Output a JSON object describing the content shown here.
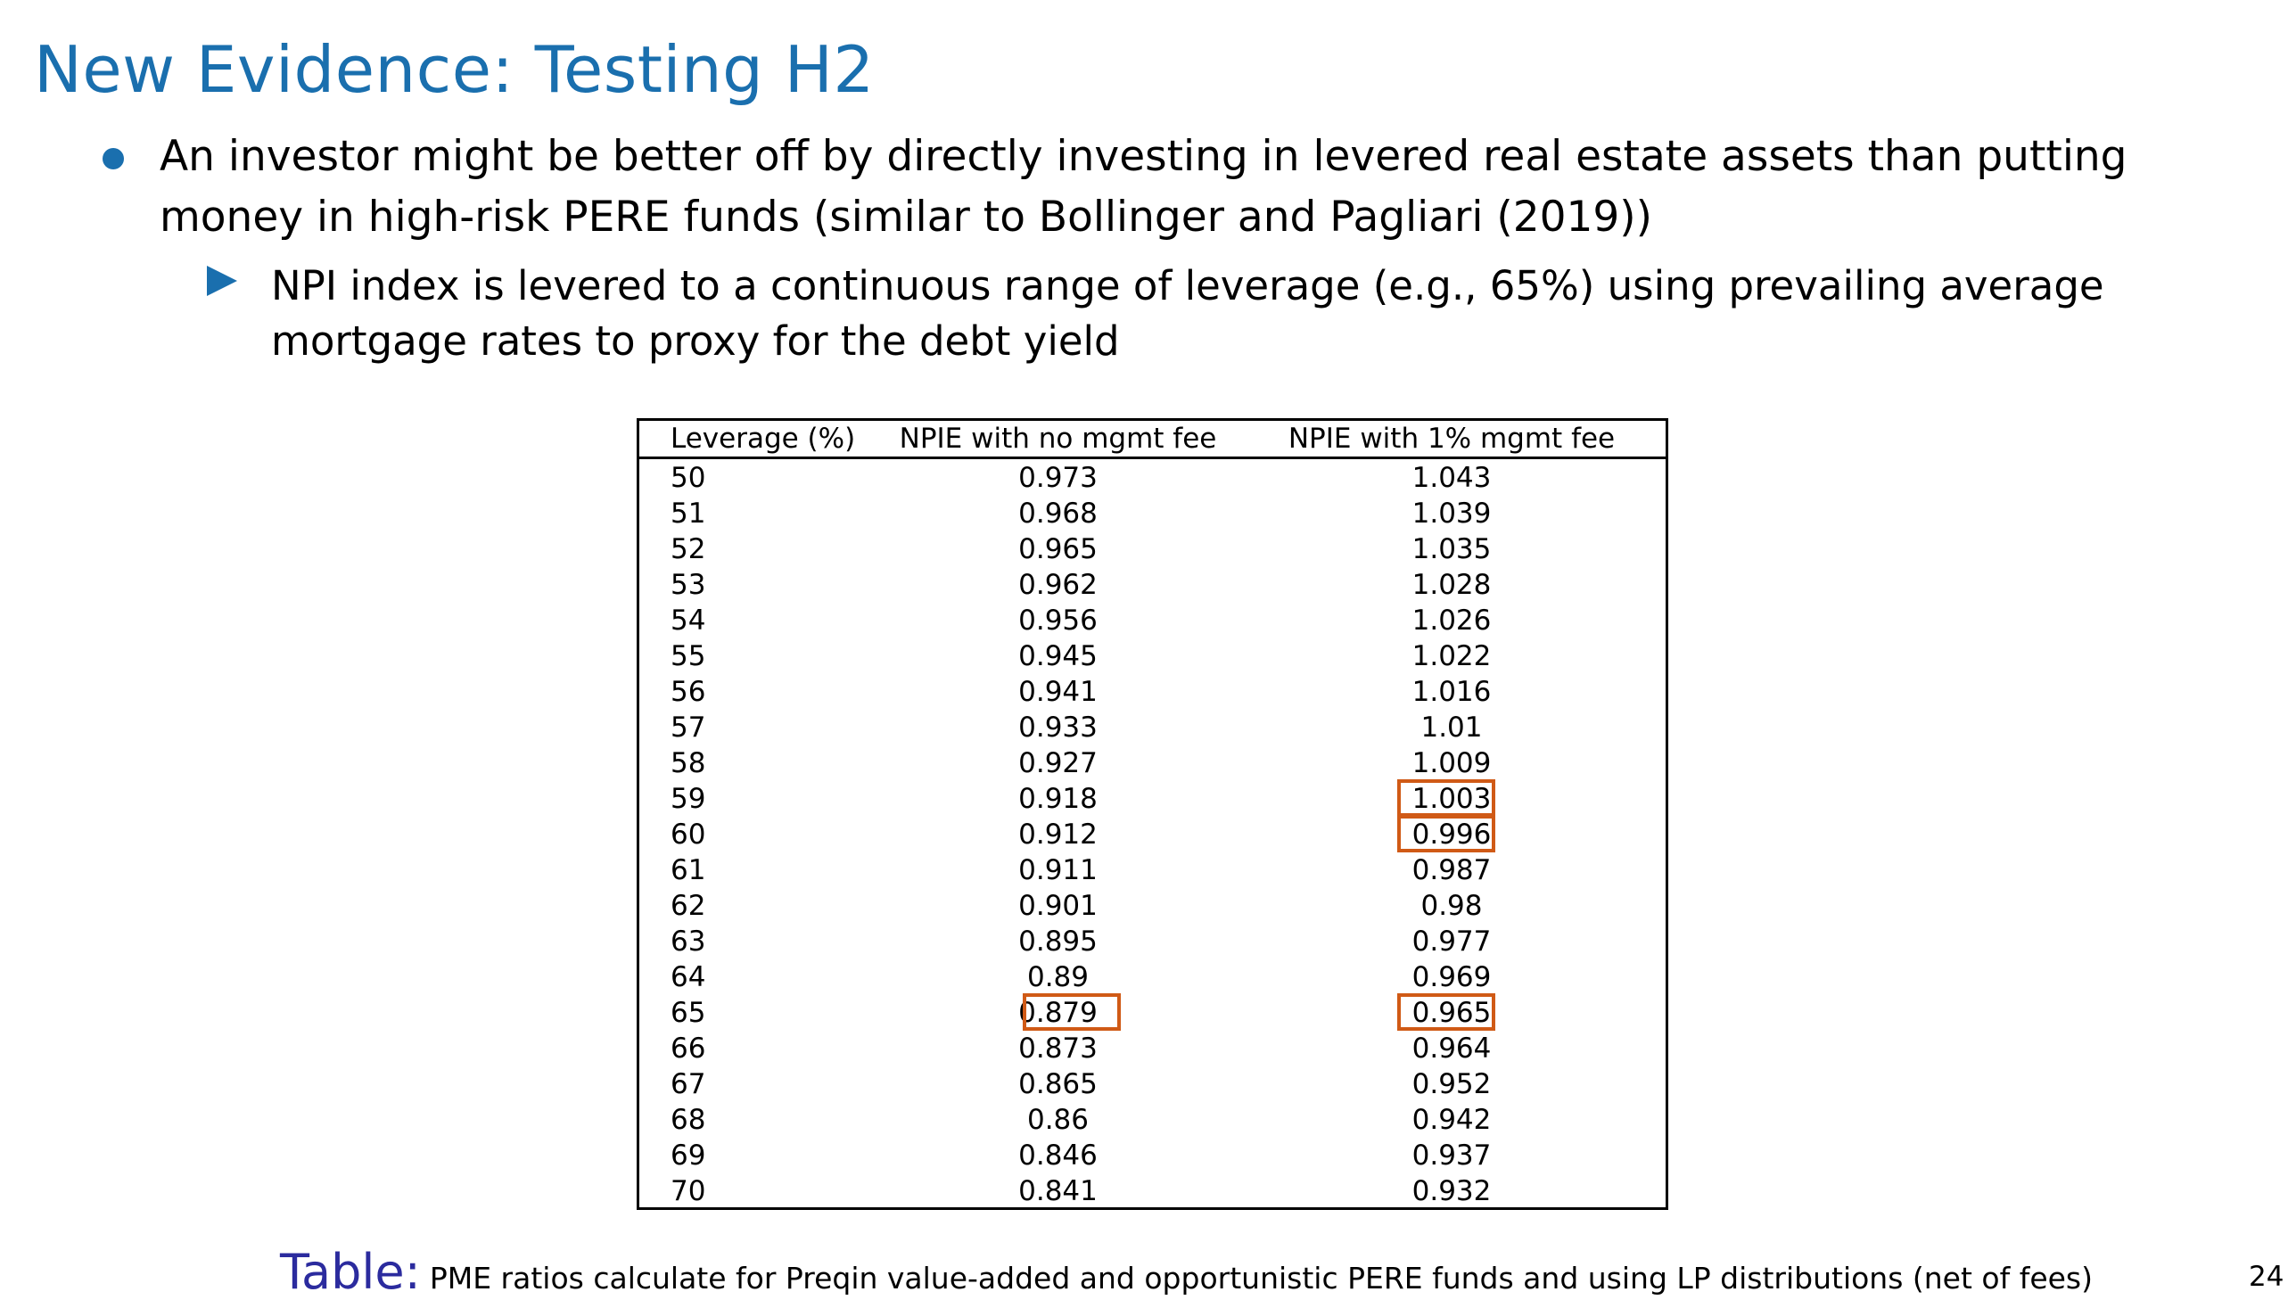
{
  "slide": {
    "title": "New Evidence: Testing H2",
    "page_number": "24"
  },
  "bullets": {
    "level1": "An investor might be better off by directly investing in levered real estate assets than putting money in high-risk PERE funds (similar to Bollinger and Pagliari (2019))",
    "level2": "NPI index is levered to a continuous range of leverage (e.g., 65%) using prevailing average mortgage rates to proxy for the debt yield"
  },
  "table": {
    "headers": [
      "Leverage (%)",
      "NPIE with no mgmt fee",
      "NPIE with 1% mgmt fee"
    ],
    "rows": [
      [
        "50",
        "0.973",
        "1.043"
      ],
      [
        "51",
        "0.968",
        "1.039"
      ],
      [
        "52",
        "0.965",
        "1.035"
      ],
      [
        "53",
        "0.962",
        "1.028"
      ],
      [
        "54",
        "0.956",
        "1.026"
      ],
      [
        "55",
        "0.945",
        "1.022"
      ],
      [
        "56",
        "0.941",
        "1.016"
      ],
      [
        "57",
        "0.933",
        "1.01"
      ],
      [
        "58",
        "0.927",
        "1.009"
      ],
      [
        "59",
        "0.918",
        "1.003"
      ],
      [
        "60",
        "0.912",
        "0.996"
      ],
      [
        "61",
        "0.911",
        "0.987"
      ],
      [
        "62",
        "0.901",
        "0.98"
      ],
      [
        "63",
        "0.895",
        "0.977"
      ],
      [
        "64",
        "0.89",
        "0.969"
      ],
      [
        "65",
        "0.879",
        "0.965"
      ],
      [
        "66",
        "0.873",
        "0.964"
      ],
      [
        "67",
        "0.865",
        "0.952"
      ],
      [
        "68",
        "0.86",
        "0.942"
      ],
      [
        "69",
        "0.846",
        "0.937"
      ],
      [
        "70",
        "0.841",
        "0.932"
      ]
    ],
    "highlighted_cells": [
      {
        "leverage": "59",
        "column": "NPIE with 1% mgmt fee",
        "value": "1.003"
      },
      {
        "leverage": "60",
        "column": "NPIE with 1% mgmt fee",
        "value": "0.996"
      },
      {
        "leverage": "65",
        "column": "NPIE with no mgmt fee",
        "value": "0.879"
      },
      {
        "leverage": "65",
        "column": "NPIE with 1% mgmt fee",
        "value": "0.965"
      }
    ]
  },
  "caption": {
    "label": "Table:",
    "text": "PME ratios calculate for Preqin value-added and opportunistic PERE funds and using LP distributions (net of fees)"
  },
  "colors": {
    "title": "#1a6fae",
    "bullet": "#1a6fae",
    "highlight": "#d05a16",
    "caption_label": "#2b2b9e"
  }
}
